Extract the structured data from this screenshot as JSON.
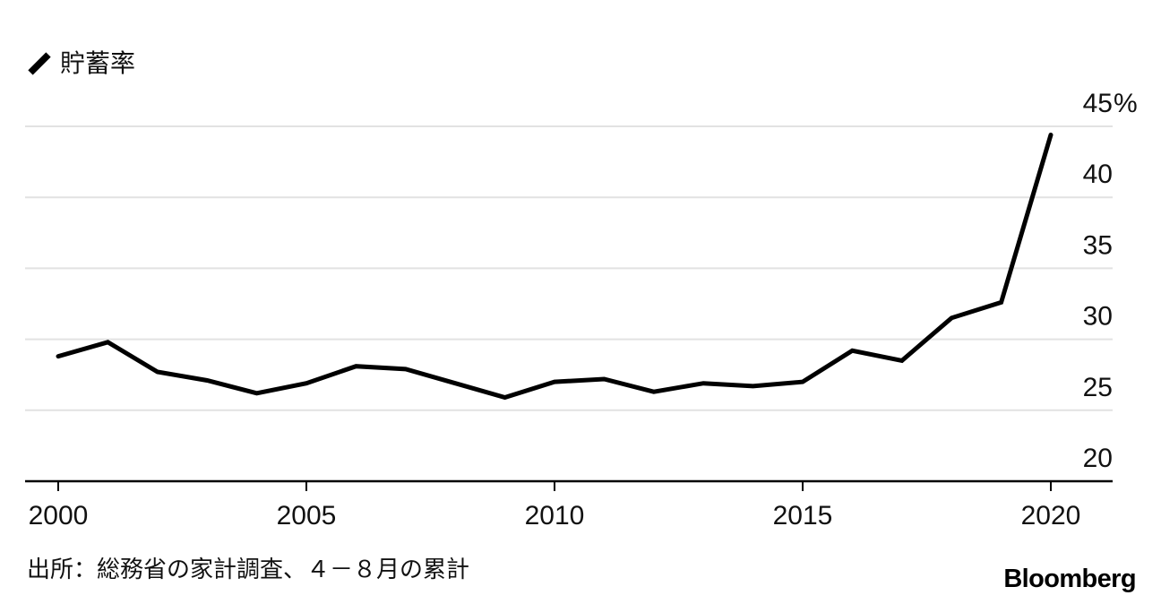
{
  "legend": {
    "label": "貯蓄率"
  },
  "chart_data": {
    "type": "line",
    "title": "",
    "x": [
      2000,
      2001,
      2002,
      2003,
      2004,
      2005,
      2006,
      2007,
      2008,
      2009,
      2010,
      2011,
      2012,
      2013,
      2014,
      2015,
      2016,
      2017,
      2018,
      2019,
      2020
    ],
    "series": [
      {
        "name": "貯蓄率",
        "values": [
          28.8,
          29.8,
          27.7,
          27.1,
          26.2,
          26.9,
          28.1,
          27.9,
          26.9,
          25.9,
          27.0,
          27.2,
          26.3,
          26.9,
          26.7,
          27.0,
          29.2,
          28.5,
          31.5,
          32.6,
          44.4
        ]
      }
    ],
    "unit": "%",
    "xticks": [
      2000,
      2005,
      2010,
      2015,
      2020
    ],
    "xtick_labels": [
      "2000",
      "2005",
      "2010",
      "2015",
      "2020"
    ],
    "yticks": [
      20,
      25,
      30,
      35,
      40,
      45
    ],
    "ytick_labels": [
      "20",
      "25",
      "30",
      "35",
      "40",
      "45%"
    ],
    "ylim": [
      20,
      45
    ],
    "grid": "horizontal",
    "legend_position": "top-left"
  },
  "footer": {
    "source": "出所：総務省の家計調査、４－８月の累計",
    "brand": "Bloomberg"
  },
  "colors": {
    "line": "#000000",
    "grid": "#e2e2e2",
    "axis": "#000000",
    "text": "#111111",
    "background": "#ffffff"
  }
}
